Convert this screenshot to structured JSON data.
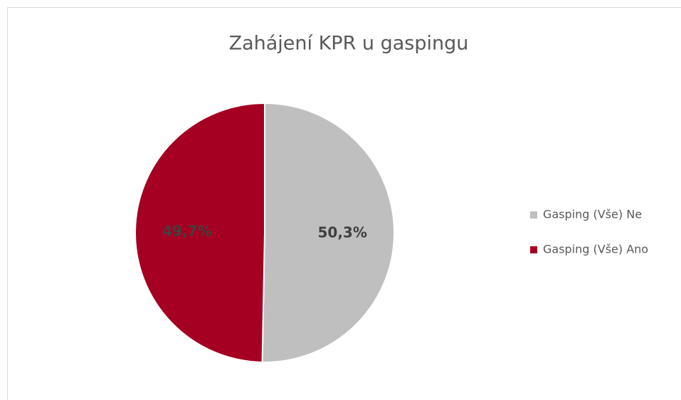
{
  "chart_data": {
    "type": "pie",
    "title": "Zahájení KPR u gaspingu",
    "categories": [
      "Gasping (Vše) Ne",
      "Gasping (Vše) Ano"
    ],
    "values": [
      50.3,
      49.7
    ],
    "value_labels": [
      "50,3%",
      "49,7%"
    ],
    "colors": [
      "#bfbfbf",
      "#a50021"
    ],
    "legend": "right"
  }
}
